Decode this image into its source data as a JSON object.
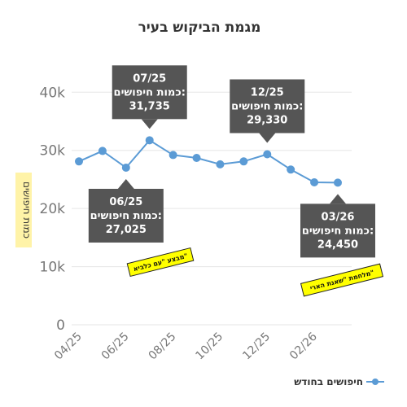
{
  "chart_data": {
    "type": "line",
    "title": "מגמת הביקוש בעיר",
    "ylabel": "כמות חיפושים",
    "xlabel": "",
    "x": [
      "04/25",
      "05/25",
      "06/25",
      "07/25",
      "08/25",
      "09/25",
      "10/25",
      "11/25",
      "12/25",
      "01/26",
      "02/26",
      "03/26"
    ],
    "x_tick_labels": [
      "04/25",
      "06/25",
      "08/25",
      "10/25",
      "12/25",
      "02/26"
    ],
    "y_tick_labels": [
      "0",
      "10k",
      "20k",
      "30k",
      "40k"
    ],
    "ylim": [
      0,
      42000
    ],
    "grid": "horizontal",
    "legend_position": "bottom-right",
    "series": [
      {
        "name": "חיפושים בחודש",
        "color": "#5b9bd5",
        "values": [
          28100,
          29900,
          27025,
          31735,
          29200,
          28700,
          27600,
          28100,
          29330,
          26700,
          24500,
          24450
        ]
      }
    ],
    "annotations": [
      {
        "x": "07/25",
        "lines": [
          "07/25",
          "כמות חיפושים:",
          "31,735"
        ],
        "placement": "above"
      },
      {
        "x": "12/25",
        "lines": [
          "12/25",
          "כמות חיפושים:",
          "29,330"
        ],
        "placement": "above"
      },
      {
        "x": "06/25",
        "lines": [
          "06/25",
          "כמות חיפושים:",
          "27,025"
        ],
        "placement": "below"
      },
      {
        "x": "03/26",
        "lines": [
          "03/26",
          "כמות חיפושים:",
          "24,450"
        ],
        "placement": "below"
      }
    ],
    "events": [
      {
        "label": "מבצע \"עם כלביא\"",
        "x": "06/25"
      },
      {
        "label": "מלחמת \"שאגת הארי\"",
        "x": "03/26"
      }
    ]
  },
  "colors": {
    "line": "#5b9bd5",
    "callout": "#555555",
    "event_highlight": "#ffff00",
    "ylabel_highlight": "#fff3a8",
    "grid": "#e6e6e6"
  }
}
